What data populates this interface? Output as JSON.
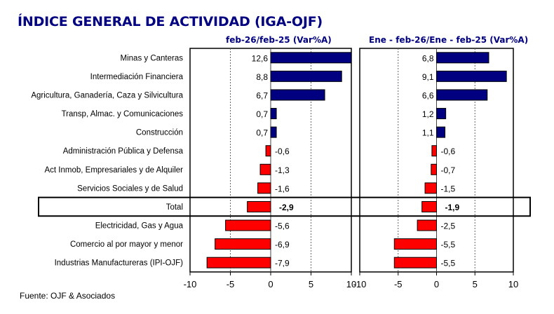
{
  "chart_data": [
    {
      "type": "bar",
      "orientation": "horizontal",
      "title": "ÍNDICE GENERAL DE ACTIVIDAD (IGA-OJF)",
      "subtitle": "feb-26/feb-25  (Var%A)",
      "categories": [
        "Minas y Canteras",
        "Intermediación Financiera",
        "Agricultura, Ganadería, Caza y Silvicultura",
        "Transp, Almac. y Comunicaciones",
        "Construcción",
        "Administración Pública y Defensa",
        "Act Inmob, Empresariales y de Alquiler",
        "Servicios Sociales y de Salud",
        "Total",
        "Electricidad, Gas y Agua",
        "Comercio al por mayor y menor",
        "Industrias Manufactureras (IPI-OJF)"
      ],
      "values": [
        12.6,
        8.8,
        6.7,
        0.7,
        0.7,
        -0.6,
        -1.3,
        -1.6,
        -2.9,
        -5.6,
        -6.9,
        -7.9
      ],
      "value_labels": [
        "12,6",
        "8,8",
        "6,7",
        "0,7",
        "0,7",
        "-0,6",
        "-1,3",
        "-1,6",
        "-2,9",
        "-5,6",
        "-6,9",
        "-7,9"
      ],
      "xlim": [
        -10,
        10
      ],
      "xticks": [
        -10,
        -5,
        0,
        5,
        10
      ],
      "xtick_labels": [
        "-10",
        "-5",
        "0",
        "5",
        "10"
      ],
      "grid": "vertical dashed",
      "highlight_category": "Total"
    },
    {
      "type": "bar",
      "orientation": "horizontal",
      "subtitle": "Ene - feb-26/Ene - feb-25  (Var%A)",
      "categories": [
        "Minas y Canteras",
        "Intermediación Financiera",
        "Agricultura, Ganadería, Caza y Silvicultura",
        "Transp, Almac. y Comunicaciones",
        "Construcción",
        "Administración Pública y Defensa",
        "Act Inmob, Empresariales y de Alquiler",
        "Servicios Sociales y de Salud",
        "Total",
        "Electricidad, Gas y Agua",
        "Comercio al por mayor y menor",
        "Industrias Manufactureras (IPI-OJF)"
      ],
      "values": [
        6.8,
        9.1,
        6.6,
        1.2,
        1.1,
        -0.6,
        -0.7,
        -1.5,
        -1.9,
        -2.5,
        -5.5,
        -5.5
      ],
      "value_labels": [
        "6,8",
        "9,1",
        "6,6",
        "1,2",
        "1,1",
        "-0,6",
        "-0,7",
        "-1,5",
        "-1,9",
        "-2,5",
        "-5,5",
        "-5,5"
      ],
      "xlim": [
        -10,
        10
      ],
      "xticks": [
        -10,
        -5,
        0,
        5,
        10
      ],
      "xtick_labels": [
        "-10",
        "-5",
        "0",
        "5",
        "10"
      ],
      "grid": "vertical dashed",
      "highlight_category": "Total"
    }
  ],
  "colors": {
    "positive": "#000080",
    "negative": "#ff0000",
    "title": "#000080"
  },
  "header": {
    "title": "ÍNDICE GENERAL DE ACTIVIDAD (IGA-OJF)",
    "subtitle_left": "feb-26/feb-25  (Var%A)",
    "subtitle_right": "Ene - feb-26/Ene - feb-25  (Var%A)"
  },
  "footer": {
    "source": "Fuente: OJF & Asociados"
  }
}
